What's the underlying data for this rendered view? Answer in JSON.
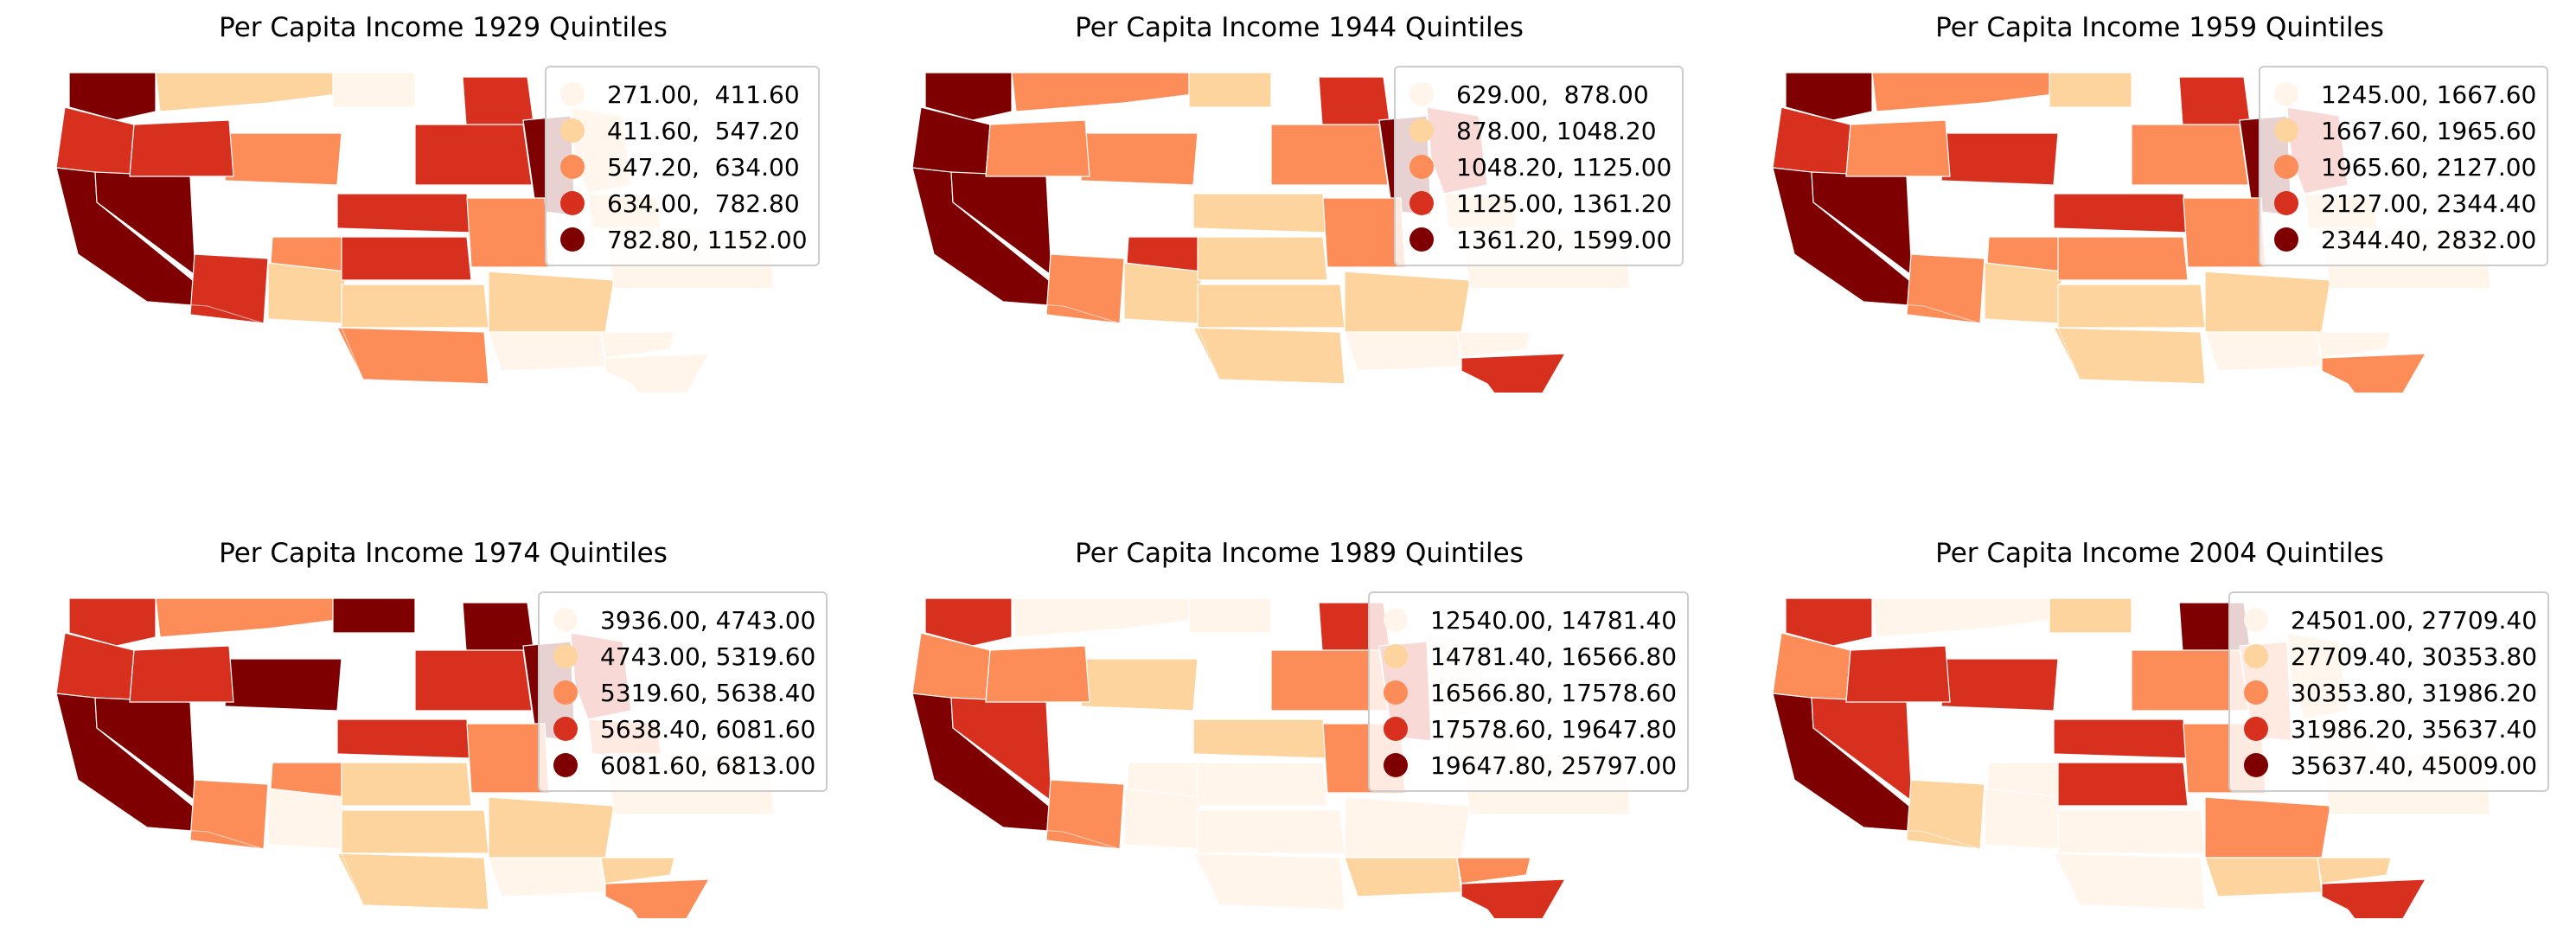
{
  "colors": [
    "#fff5eb",
    "#fdd49e",
    "#fc8d59",
    "#d7301f",
    "#7f0000"
  ],
  "panels": [
    {
      "title": "Per Capita Income 1929 Quintiles",
      "legend": [
        "271.00,  411.60",
        "411.60,  547.20",
        "547.20,  634.00",
        "634.00,  782.80",
        "782.80, 1152.00"
      ],
      "classes": [
        4,
        3,
        4,
        4,
        3,
        2,
        1,
        2,
        1,
        0,
        3,
        3,
        3,
        4,
        2,
        1,
        1,
        2,
        3,
        3,
        1,
        1,
        0,
        0,
        0,
        0
      ]
    },
    {
      "title": "Per Capita Income 1944 Quintiles",
      "legend": [
        "629.00,  878.00",
        "878.00, 1048.20",
        "1048.20, 1125.00",
        "1125.00, 1361.20",
        "1361.20, 1599.00"
      ],
      "classes": [
        4,
        4,
        4,
        4,
        2,
        3,
        2,
        2,
        1,
        1,
        1,
        1,
        3,
        4,
        2,
        3,
        1,
        1,
        2,
        2,
        1,
        1,
        0,
        0,
        0,
        3
      ]
    },
    {
      "title": "Per Capita Income 1959 Quintiles",
      "legend": [
        "1245.00, 1667.60",
        "1667.60, 1965.60",
        "1965.60, 2127.00",
        "2127.00, 2344.40",
        "2344.40, 2832.00"
      ],
      "classes": [
        4,
        3,
        4,
        4,
        2,
        2,
        2,
        3,
        1,
        1,
        3,
        2,
        3,
        4,
        2,
        3,
        1,
        1,
        2,
        2,
        1,
        1,
        0,
        0,
        0,
        2
      ]
    },
    {
      "title": "Per Capita Income 1974 Quintiles",
      "legend": [
        "3936.00, 4743.00",
        "4743.00, 5319.60",
        "5319.60, 5638.40",
        "5638.40, 6081.60",
        "6081.60, 6813.00"
      ],
      "classes": [
        3,
        3,
        4,
        4,
        2,
        2,
        2,
        4,
        0,
        4,
        3,
        1,
        4,
        4,
        2,
        3,
        1,
        1,
        3,
        3,
        2,
        1,
        0,
        0,
        1,
        2
      ]
    },
    {
      "title": "Per Capita Income 1989 Quintiles",
      "legend": [
        "12540.00, 14781.40",
        "14781.40, 16566.80",
        "16566.80, 17578.60",
        "17578.60, 19647.80",
        "19647.80, 25797.00"
      ],
      "classes": [
        3,
        2,
        4,
        3,
        2,
        0,
        0,
        1,
        0,
        0,
        1,
        0,
        3,
        3,
        2,
        0,
        0,
        0,
        2,
        2,
        0,
        0,
        0,
        1,
        2,
        3
      ]
    },
    {
      "title": "Per Capita Income 2004 Quintiles",
      "legend": [
        "24501.00, 27709.40",
        "27709.40, 30353.80",
        "30353.80, 31986.20",
        "31986.20, 35637.40",
        "35637.40, 45009.00"
      ],
      "classes": [
        3,
        2,
        4,
        3,
        1,
        0,
        0,
        3,
        0,
        1,
        3,
        3,
        4,
        2,
        2,
        1,
        0,
        0,
        2,
        3,
        0,
        2,
        0,
        1,
        1,
        3
      ]
    }
  ]
}
